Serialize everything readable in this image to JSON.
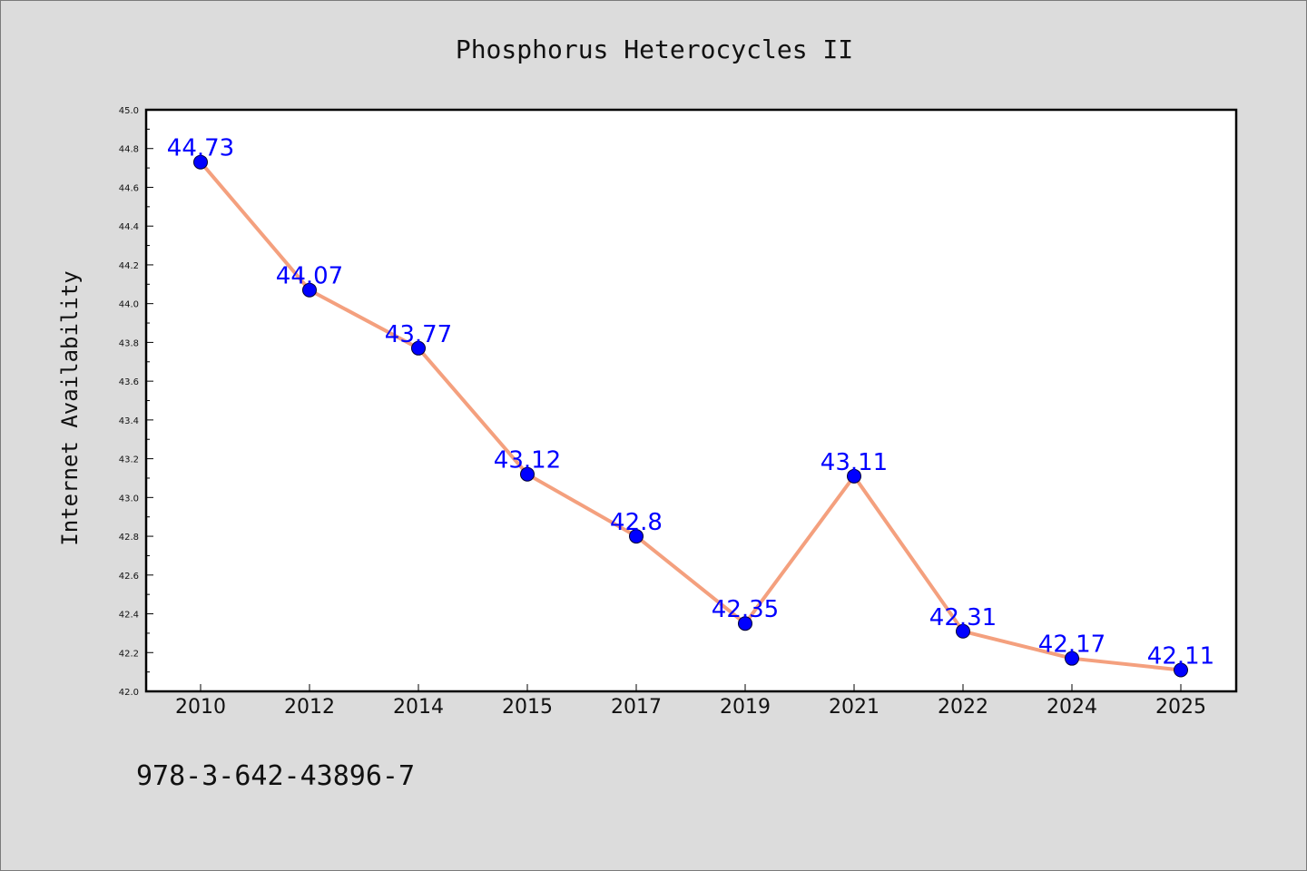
{
  "chart_data": {
    "type": "line",
    "title": "Phosphorus Heterocycles II",
    "xlabel": "",
    "ylabel": "Internet Availability",
    "categories": [
      "2010",
      "2012",
      "2014",
      "2015",
      "2017",
      "2019",
      "2021",
      "2022",
      "2024",
      "2025"
    ],
    "series": [
      {
        "values": [
          44.73,
          44.07,
          43.77,
          43.12,
          42.8,
          42.35,
          43.11,
          42.31,
          42.17,
          42.11
        ],
        "labels": [
          "44.73",
          "44.07",
          "43.77",
          "43.12",
          "42.8",
          "42.35",
          "43.11",
          "42.31",
          "42.17",
          "42.11"
        ],
        "line_color": "#f4a07e",
        "marker_color": "#0000ff",
        "label_color": "#0000ff"
      }
    ],
    "ylim": [
      42.0,
      45.0
    ],
    "yticks": [
      "42.0",
      "42.2",
      "42.4",
      "42.6",
      "42.8",
      "43.0",
      "43.2",
      "43.4",
      "43.6",
      "43.8",
      "44.0",
      "44.2",
      "44.4",
      "44.6",
      "44.8",
      "45.0"
    ],
    "grid": false,
    "legend": "none"
  },
  "footer": {
    "isbn": "978-3-642-43896-7"
  }
}
